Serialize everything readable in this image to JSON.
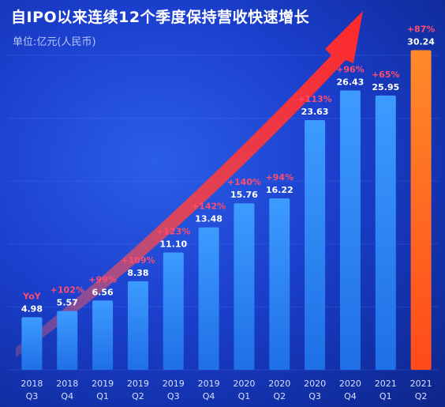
{
  "title": "自IPO以来连续12个季度保持营收快速增长",
  "unit_label": "单位:亿元(人民币)",
  "colors": {
    "bar_top": "#3d9bff",
    "bar_bottom": "#1f6fe6",
    "highlight_top": "#ff8a2a",
    "highlight_bottom": "#ff4a1a",
    "growth_label": "#ff4d6d",
    "value_label": "#ffffff",
    "arrow": "#f03a3a",
    "axis_text": "#d6e0ff"
  },
  "chart_data": {
    "type": "bar",
    "title": "自IPO以来连续12个季度保持营收快速增长",
    "ylabel": "单位:亿元(人民币)",
    "xlabel": "",
    "ylim": [
      0,
      32
    ],
    "grid": true,
    "first_label": "YoY",
    "categories": [
      {
        "year": "2018",
        "quarter": "Q3"
      },
      {
        "year": "2018",
        "quarter": "Q4"
      },
      {
        "year": "2019",
        "quarter": "Q1"
      },
      {
        "year": "2019",
        "quarter": "Q2"
      },
      {
        "year": "2019",
        "quarter": "Q3"
      },
      {
        "year": "2019",
        "quarter": "Q4"
      },
      {
        "year": "2020",
        "quarter": "Q1"
      },
      {
        "year": "2020",
        "quarter": "Q2"
      },
      {
        "year": "2020",
        "quarter": "Q3"
      },
      {
        "year": "2020",
        "quarter": "Q4"
      },
      {
        "year": "2021",
        "quarter": "Q1"
      },
      {
        "year": "2021",
        "quarter": "Q2"
      }
    ],
    "values": [
      4.98,
      5.57,
      6.56,
      8.38,
      11.1,
      13.48,
      15.76,
      16.22,
      23.63,
      26.43,
      25.95,
      30.24
    ],
    "value_labels": [
      "4.98",
      "5.57",
      "6.56",
      "8.38",
      "11.10",
      "13.48",
      "15.76",
      "16.22",
      "23.63",
      "26.43",
      "25.95",
      "30.24"
    ],
    "yoy_growth": [
      "",
      "+102%",
      "+99%",
      "+109%",
      "+123%",
      "+142%",
      "+140%",
      "+94%",
      "+113%",
      "+96%",
      "+65%",
      "+87%"
    ],
    "highlight_index": 11
  }
}
